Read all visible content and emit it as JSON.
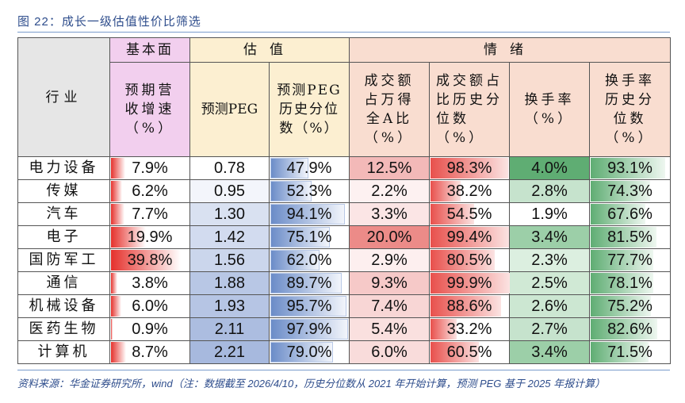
{
  "title": "图 22：成长一级估值性价比筛选",
  "header": {
    "industry": "行业",
    "groups": {
      "fundamental": "基本面",
      "valuation": "估值",
      "sentiment": "情绪"
    },
    "columns": {
      "rev_growth": "预期营收增速（%）",
      "peg": "预测PEG",
      "peg_pct": "预测PEG历史分位数（%）",
      "turnover_share": "成交额占万得全A比（%）",
      "turnover_share_pct": "成交额占比历史分位数（%）",
      "turnover_rate": "换手率（%）",
      "turnover_rate_pct": "换手率历史分位数（%）"
    },
    "colors": {
      "industry": "#e6e6e6",
      "fundamental": "#f2cfee",
      "valuation": "#fcefd1",
      "sentiment": "#f9ddd0"
    }
  },
  "rows": [
    {
      "industry": "电力设备",
      "rev_growth": "7.9%",
      "peg": "0.78",
      "peg_pct": "47.9%",
      "turnover_share": "12.5%",
      "turnover_share_pct": "98.3%",
      "turnover_rate": "4.0%",
      "turnover_rate_pct": "93.1%"
    },
    {
      "industry": "传媒",
      "rev_growth": "6.2%",
      "peg": "0.95",
      "peg_pct": "52.3%",
      "turnover_share": "2.2%",
      "turnover_share_pct": "38.2%",
      "turnover_rate": "2.8%",
      "turnover_rate_pct": "74.3%"
    },
    {
      "industry": "汽车",
      "rev_growth": "7.7%",
      "peg": "1.30",
      "peg_pct": "94.1%",
      "turnover_share": "3.3%",
      "turnover_share_pct": "54.5%",
      "turnover_rate": "1.9%",
      "turnover_rate_pct": "67.6%"
    },
    {
      "industry": "电子",
      "rev_growth": "19.9%",
      "peg": "1.42",
      "peg_pct": "75.1%",
      "turnover_share": "20.0%",
      "turnover_share_pct": "99.4%",
      "turnover_rate": "3.4%",
      "turnover_rate_pct": "81.5%"
    },
    {
      "industry": "国防军工",
      "rev_growth": "39.8%",
      "peg": "1.56",
      "peg_pct": "62.0%",
      "turnover_share": "2.9%",
      "turnover_share_pct": "80.5%",
      "turnover_rate": "2.3%",
      "turnover_rate_pct": "77.7%"
    },
    {
      "industry": "通信",
      "rev_growth": "3.8%",
      "peg": "1.88",
      "peg_pct": "89.7%",
      "turnover_share": "9.3%",
      "turnover_share_pct": "99.9%",
      "turnover_rate": "2.5%",
      "turnover_rate_pct": "78.1%"
    },
    {
      "industry": "机械设备",
      "rev_growth": "6.0%",
      "peg": "1.93",
      "peg_pct": "95.7%",
      "turnover_share": "7.4%",
      "turnover_share_pct": "88.6%",
      "turnover_rate": "2.6%",
      "turnover_rate_pct": "75.2%"
    },
    {
      "industry": "医药生物",
      "rev_growth": "0.9%",
      "peg": "2.11",
      "peg_pct": "97.9%",
      "turnover_share": "5.4%",
      "turnover_share_pct": "33.2%",
      "turnover_rate": "2.7%",
      "turnover_rate_pct": "82.6%"
    },
    {
      "industry": "计算机",
      "rev_growth": "8.7%",
      "peg": "2.21",
      "peg_pct": "79.0%",
      "turnover_share": "6.0%",
      "turnover_share_pct": "60.5%",
      "turnover_rate": "3.4%",
      "turnover_rate_pct": "71.5%"
    }
  ],
  "styling": {
    "rev_growth_bar_width": [
      18,
      14,
      17,
      44,
      88,
      8,
      13,
      2,
      19
    ],
    "peg_bg": [
      "#ffffff",
      "#f3f5fb",
      "#d9e1f1",
      "#d2dbef",
      "#cbd6ec",
      "#b8c7e5",
      "#b6c5e4",
      "#acbde0",
      "#a7b9de"
    ],
    "peg_pct_bar_width": [
      48,
      52,
      94,
      75,
      62,
      90,
      96,
      98,
      79
    ],
    "turnover_share_bg": [
      "#f3b9b8",
      "#fdf1f1",
      "#fbe5e5",
      "#ec8b88",
      "#fdefef",
      "#f6c9c8",
      "#f8d6d5",
      "#fae0df",
      "#f9dcdb"
    ],
    "turnover_share_pct_bar_width": [
      98,
      38,
      55,
      99,
      81,
      100,
      89,
      33,
      61
    ],
    "turnover_rate_bg": [
      "#5fad73",
      "#c6e3cd",
      "#ffffff",
      "#9ccfa8",
      "#dcefe0",
      "#d0e9d5",
      "#cce7d2",
      "#c6e3cd",
      "#9ccfa8"
    ],
    "turnover_rate_pct_bar_width": [
      93,
      74,
      68,
      82,
      78,
      78,
      75,
      83,
      72
    ]
  },
  "footnote": "资料来源：华金证券研究所，wind（注：数据截至 2026/4/10，历史分位数从 2021 年开始计算，预测 PEG 基于 2025 年报计算）"
}
